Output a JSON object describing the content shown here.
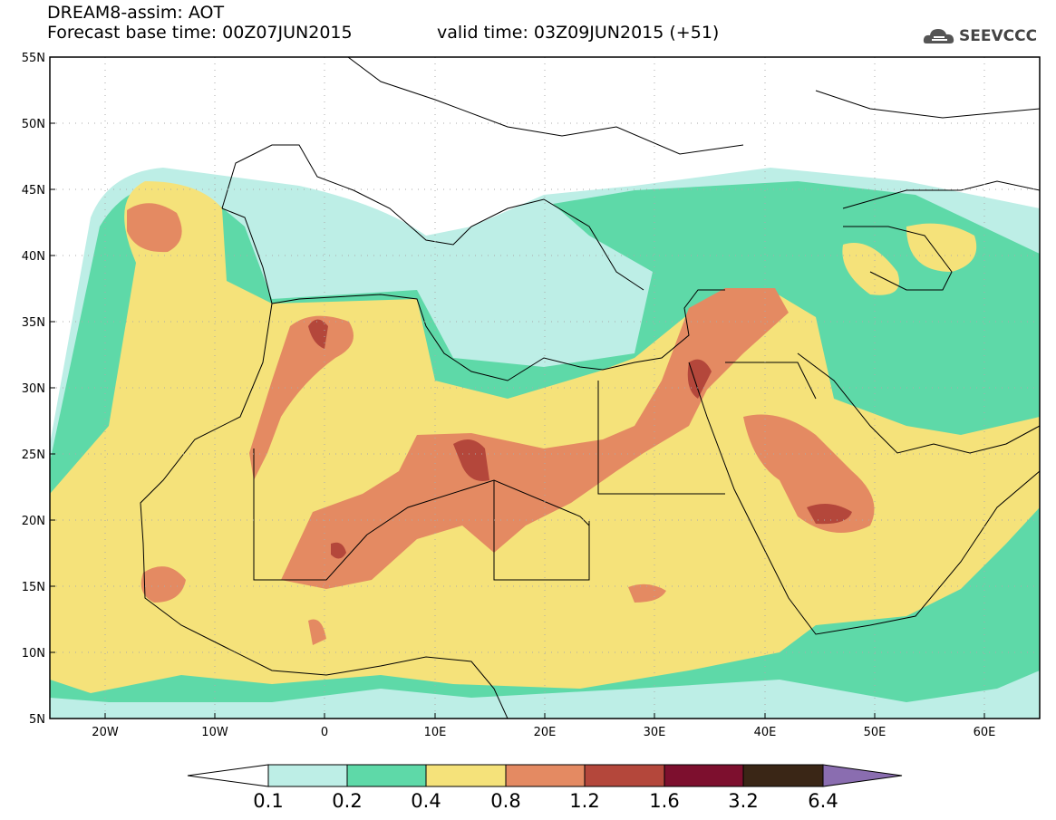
{
  "header": {
    "title": "DREAM8-assim: AOT",
    "base_time": "Forecast base time: 00Z07JUN2015",
    "valid_time": "valid time: 03Z09JUN2015 (+51)",
    "logo": "SEEVCCC"
  },
  "map": {
    "lat_labels": [
      "55N",
      "50N",
      "45N",
      "40N",
      "35N",
      "30N",
      "25N",
      "20N",
      "15N",
      "10N",
      "5N"
    ],
    "lon_labels": [
      "20W",
      "10W",
      "0",
      "10E",
      "20E",
      "30E",
      "40E",
      "50E",
      "60E"
    ],
    "lat_range": [
      5,
      55
    ],
    "lon_range": [
      -25,
      65
    ]
  },
  "colorbar": {
    "ticks": [
      "0.1",
      "0.2",
      "0.4",
      "0.8",
      "1.2",
      "1.6",
      "3.2",
      "6.4"
    ],
    "colors": [
      "#ffffff",
      "#bdeee6",
      "#5ed9a8",
      "#f5e27a",
      "#e48a62",
      "#b4473b",
      "#7d0f2e",
      "#3a2616",
      "#8a6db0"
    ]
  }
}
